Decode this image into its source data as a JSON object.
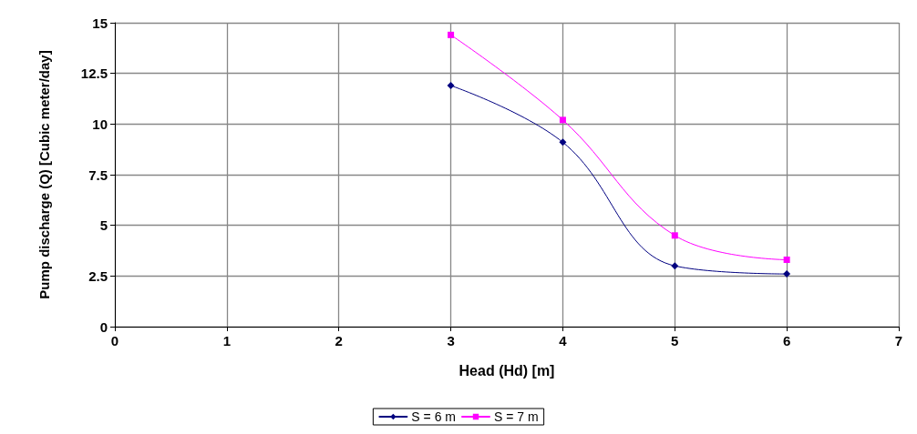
{
  "chart_data": {
    "type": "line",
    "xlabel": "Head (Hd) [m]",
    "ylabel": "Pump discharge (Q) [Cubic meter/day]",
    "x": [
      3,
      4,
      5,
      6
    ],
    "series": [
      {
        "name": "S = 6 m",
        "color": "#000080",
        "marker": "diamond",
        "values": [
          11.9,
          9.1,
          3.0,
          2.6
        ]
      },
      {
        "name": "S = 7 m",
        "color": "#ff00ff",
        "marker": "square",
        "values": [
          14.4,
          10.2,
          4.5,
          3.3
        ]
      }
    ],
    "xlim": [
      0,
      7
    ],
    "xticks": [
      0,
      1,
      2,
      3,
      4,
      5,
      6,
      7
    ],
    "ylim": [
      0,
      15
    ],
    "yticks": [
      0,
      2.5,
      5,
      7.5,
      10,
      12.5,
      15
    ],
    "grid": true,
    "legend": "bottom",
    "line_style": "solid"
  }
}
